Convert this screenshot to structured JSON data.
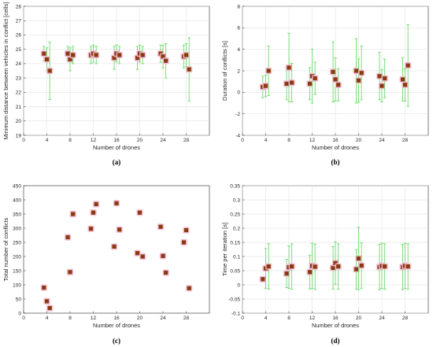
{
  "colors": {
    "marker": "#8a3a10",
    "halo": "#f2b8d2",
    "errorbar": "#5cd65c",
    "grid": "#dcdcdc"
  },
  "chart_data": [
    {
      "id": "a",
      "type": "scatter",
      "panel_label": "(a)",
      "xlabel": "Number of drones",
      "ylabel": "Minimum distance between vehicles in conflict [cells]",
      "xlim": [
        0,
        32
      ],
      "ylim": [
        19,
        28
      ],
      "xticks": [
        0,
        4,
        8,
        12,
        16,
        20,
        24,
        28
      ],
      "yticks": [
        19,
        20,
        21,
        22,
        23,
        24,
        25,
        26,
        27,
        28
      ],
      "grid": true,
      "points": [
        {
          "x": 3.5,
          "y": 24.7,
          "err": 0.5
        },
        {
          "x": 4.0,
          "y": 24.3,
          "err": 0.8
        },
        {
          "x": 4.5,
          "y": 23.5,
          "err": 2.0
        },
        {
          "x": 7.6,
          "y": 24.7,
          "err": 0.5
        },
        {
          "x": 8.0,
          "y": 24.3,
          "err": 0.8
        },
        {
          "x": 8.5,
          "y": 24.6,
          "err": 0.6
        },
        {
          "x": 11.6,
          "y": 24.6,
          "err": 0.6
        },
        {
          "x": 12.0,
          "y": 24.7,
          "err": 0.6
        },
        {
          "x": 12.5,
          "y": 24.6,
          "err": 0.6
        },
        {
          "x": 15.6,
          "y": 24.4,
          "err": 0.8
        },
        {
          "x": 16.0,
          "y": 24.7,
          "err": 0.6
        },
        {
          "x": 16.5,
          "y": 24.6,
          "err": 0.6
        },
        {
          "x": 19.6,
          "y": 24.4,
          "err": 0.8
        },
        {
          "x": 20.0,
          "y": 24.7,
          "err": 0.6
        },
        {
          "x": 20.5,
          "y": 24.6,
          "err": 0.6
        },
        {
          "x": 23.6,
          "y": 24.7,
          "err": 0.6
        },
        {
          "x": 24.0,
          "y": 24.5,
          "err": 0.8
        },
        {
          "x": 24.5,
          "y": 24.2,
          "err": 1.2
        },
        {
          "x": 27.6,
          "y": 24.5,
          "err": 0.8
        },
        {
          "x": 28.0,
          "y": 24.6,
          "err": 0.8
        },
        {
          "x": 28.5,
          "y": 23.6,
          "err": 2.2
        }
      ]
    },
    {
      "id": "b",
      "type": "scatter",
      "panel_label": "(b)",
      "xlabel": "Number of drones",
      "ylabel": "Duration of conflicts [s]",
      "xlim": [
        0,
        32
      ],
      "ylim": [
        -4,
        8
      ],
      "xticks": [
        0,
        4,
        8,
        12,
        16,
        20,
        24,
        28
      ],
      "yticks": [
        -4,
        -2,
        0,
        2,
        4,
        6,
        8
      ],
      "grid": true,
      "points": [
        {
          "x": 3.5,
          "y": 0.5,
          "err": 1.0
        },
        {
          "x": 4.0,
          "y": 0.6,
          "err": 1.0
        },
        {
          "x": 4.5,
          "y": 2.0,
          "err": 2.3
        },
        {
          "x": 7.6,
          "y": 0.8,
          "err": 1.5
        },
        {
          "x": 8.0,
          "y": 2.3,
          "err": 3.2
        },
        {
          "x": 8.5,
          "y": 0.9,
          "err": 1.8
        },
        {
          "x": 11.6,
          "y": 0.8,
          "err": 1.5
        },
        {
          "x": 12.0,
          "y": 1.5,
          "err": 2.5
        },
        {
          "x": 12.5,
          "y": 1.3,
          "err": 1.5
        },
        {
          "x": 15.6,
          "y": 1.9,
          "err": 2.8
        },
        {
          "x": 16.0,
          "y": 1.2,
          "err": 2.0
        },
        {
          "x": 16.5,
          "y": 0.7,
          "err": 1.5
        },
        {
          "x": 19.6,
          "y": 2.0,
          "err": 3.0
        },
        {
          "x": 20.0,
          "y": 1.1,
          "err": 2.0
        },
        {
          "x": 20.5,
          "y": 1.8,
          "err": 2.5
        },
        {
          "x": 23.6,
          "y": 1.5,
          "err": 2.2
        },
        {
          "x": 24.0,
          "y": 0.6,
          "err": 1.5
        },
        {
          "x": 24.5,
          "y": 1.3,
          "err": 1.8
        },
        {
          "x": 27.6,
          "y": 1.2,
          "err": 2.0
        },
        {
          "x": 28.0,
          "y": 0.7,
          "err": 1.5
        },
        {
          "x": 28.5,
          "y": 2.5,
          "err": 3.8
        }
      ]
    },
    {
      "id": "c",
      "type": "scatter",
      "panel_label": "(c)",
      "xlabel": "Number of drones",
      "ylabel": "Total number of conflicts",
      "xlim": [
        0,
        32
      ],
      "ylim": [
        0,
        450
      ],
      "xticks": [
        0,
        4,
        8,
        12,
        16,
        20,
        24,
        28
      ],
      "yticks": [
        0,
        50,
        100,
        150,
        200,
        250,
        300,
        350,
        400,
        450
      ],
      "grid": false,
      "points": [
        {
          "x": 3.5,
          "y": 90
        },
        {
          "x": 4.0,
          "y": 42
        },
        {
          "x": 4.5,
          "y": 18
        },
        {
          "x": 7.6,
          "y": 268
        },
        {
          "x": 8.0,
          "y": 145
        },
        {
          "x": 8.5,
          "y": 350
        },
        {
          "x": 11.6,
          "y": 298
        },
        {
          "x": 12.0,
          "y": 355
        },
        {
          "x": 12.5,
          "y": 385
        },
        {
          "x": 15.6,
          "y": 235
        },
        {
          "x": 16.0,
          "y": 388
        },
        {
          "x": 16.5,
          "y": 295
        },
        {
          "x": 19.6,
          "y": 212
        },
        {
          "x": 20.0,
          "y": 355
        },
        {
          "x": 20.5,
          "y": 200
        },
        {
          "x": 23.6,
          "y": 305
        },
        {
          "x": 24.0,
          "y": 202
        },
        {
          "x": 24.5,
          "y": 143
        },
        {
          "x": 27.6,
          "y": 250
        },
        {
          "x": 28.0,
          "y": 293
        },
        {
          "x": 28.5,
          "y": 88
        }
      ]
    },
    {
      "id": "d",
      "type": "scatter",
      "panel_label": "(d)",
      "xlabel": "Number of drones",
      "ylabel": "Time per iteration [s]",
      "xlim": [
        0,
        32
      ],
      "ylim": [
        -0.1,
        0.35
      ],
      "xticks": [
        0,
        4,
        8,
        12,
        16,
        20,
        24,
        28
      ],
      "yticks": [
        -0.1,
        -0.05,
        0,
        0.05,
        0.1,
        0.15,
        0.2,
        0.25,
        0.3,
        0.35
      ],
      "ytick_labels": [
        "-0.1",
        "-0.05",
        "0",
        "0.05",
        "0.1",
        "0.15",
        "0.2",
        "0.25",
        "0.3",
        "0.35"
      ],
      "grid": true,
      "points": [
        {
          "x": 3.5,
          "y": 0.02,
          "err": 0.0
        },
        {
          "x": 4.0,
          "y": 0.058,
          "err": 0.07
        },
        {
          "x": 4.5,
          "y": 0.065,
          "err": 0.08
        },
        {
          "x": 7.6,
          "y": 0.04,
          "err": 0.05
        },
        {
          "x": 8.0,
          "y": 0.062,
          "err": 0.075
        },
        {
          "x": 8.5,
          "y": 0.065,
          "err": 0.08
        },
        {
          "x": 11.6,
          "y": 0.045,
          "err": 0.06
        },
        {
          "x": 12.0,
          "y": 0.067,
          "err": 0.08
        },
        {
          "x": 12.5,
          "y": 0.064,
          "err": 0.08
        },
        {
          "x": 15.6,
          "y": 0.06,
          "err": 0.075
        },
        {
          "x": 16.0,
          "y": 0.077,
          "err": 0.075
        },
        {
          "x": 16.5,
          "y": 0.065,
          "err": 0.08
        },
        {
          "x": 19.6,
          "y": 0.055,
          "err": 0.07
        },
        {
          "x": 20.0,
          "y": 0.093,
          "err": 0.11
        },
        {
          "x": 20.5,
          "y": 0.068,
          "err": 0.08
        },
        {
          "x": 23.6,
          "y": 0.063,
          "err": 0.08
        },
        {
          "x": 24.0,
          "y": 0.067,
          "err": 0.08
        },
        {
          "x": 24.5,
          "y": 0.065,
          "err": 0.08
        },
        {
          "x": 27.6,
          "y": 0.063,
          "err": 0.08
        },
        {
          "x": 28.0,
          "y": 0.067,
          "err": 0.08
        },
        {
          "x": 28.5,
          "y": 0.065,
          "err": 0.08
        }
      ]
    }
  ]
}
